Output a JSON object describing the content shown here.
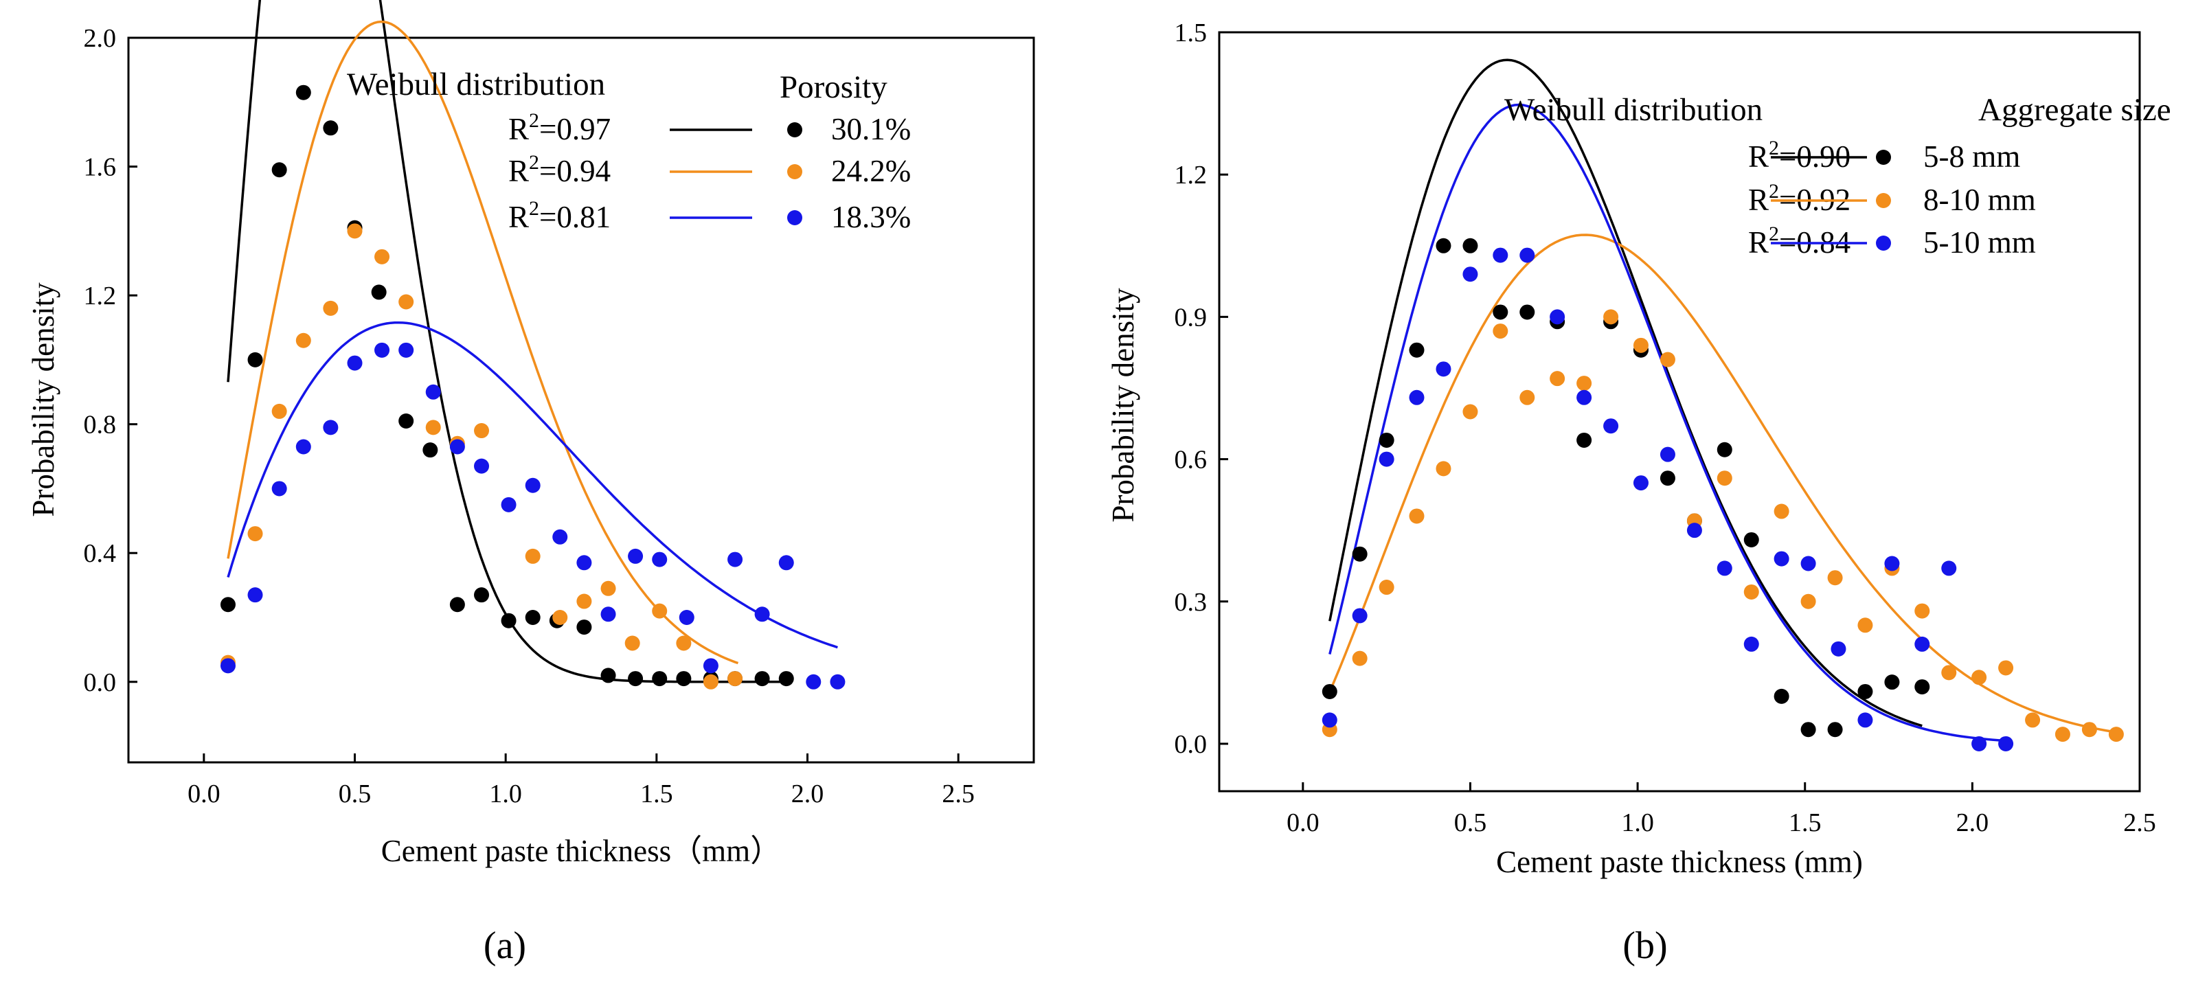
{
  "chart_data": [
    {
      "type": "scatter",
      "panel_label": "(a)",
      "title": "",
      "xlabel": "Cement paste thickness（mm）",
      "ylabel": "Probability density",
      "xlim": [
        -0.25,
        2.75
      ],
      "ylim": [
        -0.25,
        2.0
      ],
      "x_ticks": [
        0.0,
        0.5,
        1.0,
        1.5,
        2.0,
        2.5
      ],
      "x_tick_labels": [
        "0.0",
        "0.5",
        "1.0",
        "1.5",
        "2.0",
        "2.5"
      ],
      "y_ticks": [
        0.0,
        0.4,
        0.8,
        1.2,
        1.6,
        2.0
      ],
      "y_tick_labels": [
        "0.0",
        "0.4",
        "0.8",
        "1.2",
        "1.6",
        "2.0"
      ],
      "legend": {
        "fit_heading": "Weibull distribution",
        "group_heading": "Porosity",
        "placement": "top-right"
      },
      "series": [
        {
          "name": "30.1%",
          "r2_label": "R",
          "r2_sup": "2",
          "r2_value": "=0.97",
          "color": "#000000",
          "x": [
            0.08,
            0.17,
            0.25,
            0.33,
            0.42,
            0.5,
            0.58,
            0.67,
            0.75,
            0.84,
            0.92,
            1.01,
            1.09,
            1.17,
            1.26,
            1.34,
            1.43,
            1.51,
            1.59,
            1.68,
            1.76,
            1.85,
            1.93
          ],
          "y": [
            0.24,
            1.0,
            1.59,
            1.83,
            1.72,
            1.41,
            1.21,
            0.81,
            0.72,
            0.24,
            0.27,
            0.19,
            0.2,
            0.19,
            0.17,
            0.02,
            0.01,
            0.01,
            0.01,
            0.01,
            0.01,
            0.01,
            0.01
          ],
          "fit": {
            "k": 2.1,
            "lambda": 0.5,
            "A": 1.7,
            "x_range": [
              0.08,
              1.93
            ]
          }
        },
        {
          "name": "24.2%",
          "r2_label": "R",
          "r2_sup": "2",
          "r2_value": "=0.94",
          "color": "#F28E1C",
          "x": [
            0.08,
            0.17,
            0.25,
            0.33,
            0.42,
            0.5,
            0.59,
            0.67,
            0.76,
            0.84,
            0.92,
            1.09,
            1.18,
            1.26,
            1.34,
            1.42,
            1.51,
            1.59,
            1.68,
            1.76
          ],
          "y": [
            0.06,
            0.46,
            0.84,
            1.06,
            1.16,
            1.4,
            1.32,
            1.18,
            0.79,
            0.74,
            0.78,
            0.39,
            0.2,
            0.25,
            0.29,
            0.12,
            0.22,
            0.12,
            0.0,
            0.01
          ],
          "fit": {
            "k": 2.1,
            "lambda": 0.8,
            "A": 1.85,
            "x_range": [
              0.08,
              1.77
            ]
          }
        },
        {
          "name": "18.3%",
          "r2_label": "R",
          "r2_sup": "2",
          "r2_value": "=0.81",
          "color": "#1515E8",
          "x": [
            0.08,
            0.17,
            0.25,
            0.33,
            0.42,
            0.5,
            0.59,
            0.67,
            0.76,
            0.84,
            0.92,
            1.01,
            1.09,
            1.18,
            1.26,
            1.34,
            1.43,
            1.51,
            1.6,
            1.68,
            1.76,
            1.85,
            1.93,
            2.02,
            2.1
          ],
          "y": [
            0.05,
            0.27,
            0.6,
            0.73,
            0.79,
            0.99,
            1.03,
            1.03,
            0.9,
            0.73,
            0.67,
            0.55,
            0.61,
            0.45,
            0.37,
            0.21,
            0.39,
            0.38,
            0.2,
            0.05,
            0.38,
            0.21,
            0.37,
            0.0,
            0.0
          ],
          "fit": {
            "k": 1.8,
            "lambda": 1.01,
            "A": 1.4,
            "x_range": [
              0.08,
              2.1
            ]
          }
        }
      ]
    },
    {
      "type": "scatter",
      "panel_label": "(b)",
      "title": "",
      "xlabel": "Cement paste thickness (mm)",
      "ylabel": "Probability density",
      "xlim": [
        -0.25,
        2.5
      ],
      "ylim": [
        -0.1,
        1.5
      ],
      "x_ticks": [
        0.0,
        0.5,
        1.0,
        1.5,
        2.0,
        2.5
      ],
      "x_tick_labels": [
        "0.0",
        "0.5",
        "1.0",
        "1.5",
        "2.0",
        "2.5"
      ],
      "y_ticks": [
        0.0,
        0.3,
        0.6,
        0.9,
        1.2,
        1.5
      ],
      "y_tick_labels": [
        "0.0",
        "0.3",
        "0.6",
        "0.9",
        "1.2",
        "1.5"
      ],
      "legend": {
        "fit_heading": "Weibull distribution",
        "group_heading": "Aggregate size",
        "placement": "top-right"
      },
      "series": [
        {
          "name": "5-8 mm",
          "r2_label": "R",
          "r2_sup": "2",
          "r2_value": "=0.90",
          "color": "#000000",
          "x": [
            0.08,
            0.17,
            0.25,
            0.34,
            0.42,
            0.5,
            0.59,
            0.67,
            0.76,
            0.84,
            0.92,
            1.01,
            1.09,
            1.17,
            1.26,
            1.34,
            1.43,
            1.51,
            1.59,
            1.68,
            1.76,
            1.85
          ],
          "y": [
            0.11,
            0.4,
            0.64,
            0.83,
            1.05,
            1.05,
            0.91,
            0.91,
            0.89,
            0.64,
            0.89,
            0.83,
            0.56,
            0.47,
            0.62,
            0.43,
            0.1,
            0.03,
            0.03,
            0.11,
            0.13,
            0.12
          ],
          "fit": {
            "k": 2.1,
            "lambda": 0.83,
            "A": 1.35,
            "x_range": [
              0.08,
              1.85
            ]
          }
        },
        {
          "name": "8-10 mm",
          "r2_label": "R",
          "r2_sup": "2",
          "r2_value": "=0.92",
          "color": "#F28E1C",
          "x": [
            0.08,
            0.17,
            0.25,
            0.34,
            0.42,
            0.5,
            0.59,
            0.67,
            0.76,
            0.84,
            0.92,
            1.01,
            1.09,
            1.17,
            1.26,
            1.34,
            1.43,
            1.51,
            1.59,
            1.68,
            1.76,
            1.85,
            1.93,
            2.02,
            2.1,
            2.18,
            2.27,
            2.35,
            2.43
          ],
          "y": [
            0.03,
            0.18,
            0.33,
            0.48,
            0.58,
            0.7,
            0.87,
            0.73,
            0.77,
            0.76,
            0.9,
            0.84,
            0.81,
            0.47,
            0.56,
            0.32,
            0.49,
            0.3,
            0.35,
            0.25,
            0.37,
            0.28,
            0.15,
            0.14,
            0.16,
            0.05,
            0.02,
            0.03,
            0.02
          ],
          "fit": {
            "k": 2.2,
            "lambda": 1.11,
            "A": 1.3,
            "x_range": [
              0.08,
              2.43
            ]
          }
        },
        {
          "name": "5-10 mm",
          "r2_label": "R",
          "r2_sup": "2",
          "r2_value": "=0.84",
          "color": "#1515E8",
          "x": [
            0.08,
            0.17,
            0.25,
            0.34,
            0.42,
            0.5,
            0.59,
            0.67,
            0.76,
            0.84,
            0.92,
            1.01,
            1.09,
            1.17,
            1.26,
            1.34,
            1.43,
            1.51,
            1.6,
            1.68,
            1.76,
            1.85,
            1.93,
            2.02,
            2.1
          ],
          "y": [
            0.05,
            0.27,
            0.6,
            0.73,
            0.79,
            0.99,
            1.03,
            1.03,
            0.9,
            0.73,
            0.67,
            0.55,
            0.61,
            0.45,
            0.37,
            0.21,
            0.39,
            0.38,
            0.2,
            0.05,
            0.38,
            0.21,
            0.37,
            0.0,
            0.0
          ],
          "fit": {
            "k": 2.2,
            "lambda": 0.85,
            "A": 1.25,
            "x_range": [
              0.08,
              2.1
            ]
          }
        }
      ]
    }
  ]
}
